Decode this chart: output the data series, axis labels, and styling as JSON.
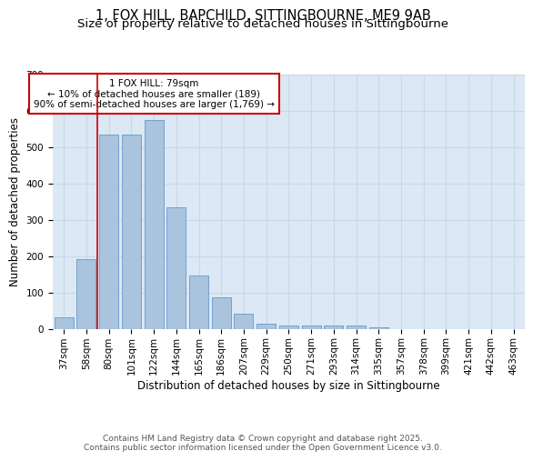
{
  "title1": "1, FOX HILL, BAPCHILD, SITTINGBOURNE, ME9 9AB",
  "title2": "Size of property relative to detached houses in Sittingbourne",
  "xlabel": "Distribution of detached houses by size in Sittingbourne",
  "ylabel": "Number of detached properties",
  "bar_labels": [
    "37sqm",
    "58sqm",
    "80sqm",
    "101sqm",
    "122sqm",
    "144sqm",
    "165sqm",
    "186sqm",
    "207sqm",
    "229sqm",
    "250sqm",
    "271sqm",
    "293sqm",
    "314sqm",
    "335sqm",
    "357sqm",
    "378sqm",
    "399sqm",
    "421sqm",
    "442sqm",
    "463sqm"
  ],
  "bar_values": [
    32,
    193,
    535,
    535,
    575,
    336,
    148,
    87,
    42,
    15,
    11,
    10,
    10,
    10,
    5,
    0,
    0,
    0,
    0,
    0,
    0
  ],
  "bar_color": "#aac4de",
  "bar_edge_color": "#6699cc",
  "grid_color": "#c8d8e8",
  "background_color": "#dce8f4",
  "vline_x": 1.5,
  "vline_color": "#cc0000",
  "annotation_text": "1 FOX HILL: 79sqm\n← 10% of detached houses are smaller (189)\n90% of semi-detached houses are larger (1,769) →",
  "annotation_box_color": "#ffffff",
  "annotation_box_edge": "#cc0000",
  "ylim": [
    0,
    700
  ],
  "yticks": [
    0,
    100,
    200,
    300,
    400,
    500,
    600,
    700
  ],
  "footer_text": "Contains HM Land Registry data © Crown copyright and database right 2025.\nContains public sector information licensed under the Open Government Licence v3.0.",
  "title_fontsize": 10.5,
  "subtitle_fontsize": 9.5,
  "axis_label_fontsize": 8.5,
  "tick_fontsize": 7.5,
  "footer_fontsize": 6.5
}
